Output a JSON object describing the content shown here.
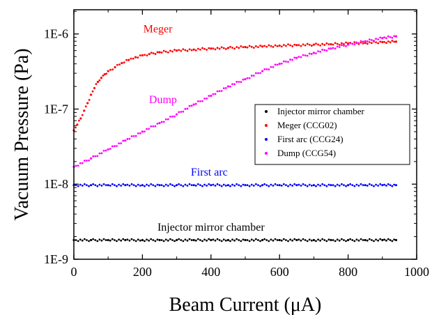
{
  "chart_data": {
    "type": "scatter",
    "xlabel": "Beam Current (μA)",
    "ylabel": "Vacuum Pressure (Pa)",
    "xlim": [
      0,
      1000
    ],
    "ylim": [
      1e-09,
      2.1e-06
    ],
    "yscale": "log",
    "xticks": [
      0,
      200,
      400,
      600,
      800,
      1000
    ],
    "xtick_labels": [
      "0",
      "200",
      "400",
      "600",
      "800",
      "1000"
    ],
    "yticks": [
      1e-09,
      1e-08,
      1e-07,
      1e-06
    ],
    "ytick_labels": [
      "1E-9",
      "1E-8",
      "1E-7",
      "1E-6"
    ],
    "grid": false,
    "legend_position": "right",
    "series": [
      {
        "name": "Injector mirror chamber",
        "color": "#000000",
        "x": [
          0,
          50,
          100,
          150,
          200,
          250,
          300,
          350,
          400,
          450,
          500,
          550,
          600,
          650,
          700,
          750,
          800,
          850,
          900,
          940
        ],
        "y": [
          1.8e-09,
          1.8e-09,
          1.8e-09,
          1.8e-09,
          1.8e-09,
          1.8e-09,
          1.8e-09,
          1.8e-09,
          1.8e-09,
          1.8e-09,
          1.8e-09,
          1.8e-09,
          1.8e-09,
          1.8e-09,
          1.8e-09,
          1.8e-09,
          1.8e-09,
          1.8e-09,
          1.8e-09,
          1.8e-09
        ]
      },
      {
        "name": "Meger (CCG02)",
        "color": "#ff0000",
        "x": [
          0,
          10,
          20,
          30,
          40,
          50,
          60,
          70,
          80,
          90,
          100,
          120,
          140,
          160,
          180,
          200,
          220,
          250,
          300,
          350,
          400,
          450,
          500,
          550,
          600,
          650,
          700,
          750,
          800,
          850,
          900,
          940
        ],
        "y": [
          5.2e-08,
          6.2e-08,
          7.5e-08,
          9.5e-08,
          1.2e-07,
          1.55e-07,
          1.9e-07,
          2.3e-07,
          2.6e-07,
          2.9e-07,
          3.2e-07,
          3.6e-07,
          4.1e-07,
          4.5e-07,
          4.9e-07,
          5.2e-07,
          5.4e-07,
          5.7e-07,
          6e-07,
          6.2e-07,
          6.4e-07,
          6.5e-07,
          6.7e-07,
          6.8e-07,
          7e-07,
          7.1e-07,
          7.2e-07,
          7.3e-07,
          7.5e-07,
          7.6e-07,
          7.8e-07,
          7.9e-07
        ]
      },
      {
        "name": "First arc (CCG24)",
        "color": "#0000ff",
        "x": [
          0,
          50,
          100,
          150,
          200,
          250,
          300,
          350,
          400,
          450,
          500,
          550,
          600,
          650,
          700,
          750,
          800,
          850,
          900,
          940
        ],
        "y": [
          9.7e-09,
          9.7e-09,
          9.7e-09,
          9.7e-09,
          9.7e-09,
          9.7e-09,
          9.7e-09,
          9.7e-09,
          9.7e-09,
          9.7e-09,
          9.7e-09,
          9.7e-09,
          9.7e-09,
          9.7e-09,
          9.7e-09,
          9.7e-09,
          9.7e-09,
          9.7e-09,
          9.7e-09,
          9.7e-09
        ]
      },
      {
        "name": "Dump (CCG54)",
        "color": "#ff00ff",
        "x": [
          0,
          50,
          100,
          150,
          200,
          250,
          300,
          350,
          400,
          450,
          500,
          550,
          600,
          650,
          700,
          750,
          800,
          850,
          900,
          940
        ],
        "y": [
          1.7e-08,
          2.2e-08,
          2.9e-08,
          3.8e-08,
          5e-08,
          6.5e-08,
          8.5e-08,
          1.15e-07,
          1.5e-07,
          2e-07,
          2.5e-07,
          3.2e-07,
          4e-07,
          4.8e-07,
          5.6e-07,
          6.4e-07,
          7.2e-07,
          8e-07,
          8.8e-07,
          9.3e-07
        ]
      }
    ],
    "annotations": [
      {
        "text": "Meger",
        "x": 245,
        "y": 1.05e-06,
        "color": "#ff0000"
      },
      {
        "text": "Dump",
        "x": 260,
        "y": 1.2e-07,
        "color": "#ff00ff"
      },
      {
        "text": "First arc",
        "x": 395,
        "y": 1.3e-08,
        "color": "#0000ff"
      },
      {
        "text": "Injector mirror chamber",
        "x": 400,
        "y": 2.4e-09,
        "color": "#000000"
      }
    ]
  }
}
